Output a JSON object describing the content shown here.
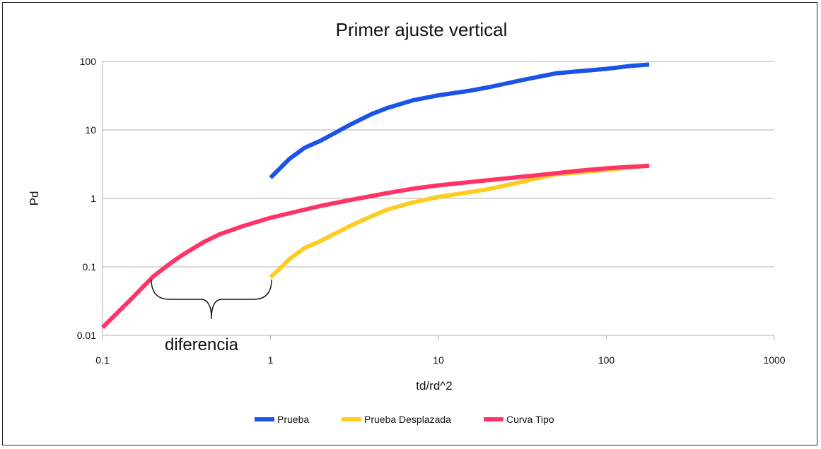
{
  "chart_data": {
    "type": "line",
    "title": "Primer ajuste vertical",
    "xlabel": "td/rd^2",
    "ylabel": "Pd",
    "xscale": "log",
    "yscale": "log",
    "xlim": [
      0.1,
      1000
    ],
    "ylim": [
      0.01,
      100
    ],
    "xticks": [
      "0.1",
      "1",
      "10",
      "100",
      "1000"
    ],
    "yticks": [
      "0.01",
      "0.1",
      "1",
      "10",
      "100"
    ],
    "grid": "horizontal",
    "legend_position": "bottom",
    "annotation": "diferencia",
    "series": [
      {
        "name": "Prueba",
        "color": "#1a53e8",
        "points": [
          [
            1,
            2
          ],
          [
            1.3,
            3.8
          ],
          [
            1.6,
            5.5
          ],
          [
            2,
            7
          ],
          [
            3,
            12
          ],
          [
            4,
            17
          ],
          [
            5,
            21
          ],
          [
            7,
            27
          ],
          [
            10,
            32
          ],
          [
            15,
            37
          ],
          [
            20,
            42
          ],
          [
            30,
            52
          ],
          [
            40,
            60
          ],
          [
            50,
            67
          ],
          [
            70,
            72
          ],
          [
            100,
            78
          ],
          [
            140,
            86
          ],
          [
            180,
            90
          ]
        ]
      },
      {
        "name": "Prueba Desplazada",
        "color": "#ffcc22",
        "points": [
          [
            1,
            0.07
          ],
          [
            1.3,
            0.13
          ],
          [
            1.6,
            0.19
          ],
          [
            2,
            0.24
          ],
          [
            3,
            0.4
          ],
          [
            4,
            0.55
          ],
          [
            5,
            0.69
          ],
          [
            7,
            0.87
          ],
          [
            10,
            1.05
          ],
          [
            15,
            1.22
          ],
          [
            20,
            1.37
          ],
          [
            30,
            1.7
          ],
          [
            40,
            2
          ],
          [
            50,
            2.25
          ],
          [
            70,
            2.4
          ],
          [
            100,
            2.6
          ],
          [
            140,
            2.85
          ],
          [
            180,
            3
          ]
        ]
      },
      {
        "name": "Curva Tipo",
        "color": "#ff3366",
        "points": [
          [
            0.1,
            0.013
          ],
          [
            0.15,
            0.035
          ],
          [
            0.2,
            0.072
          ],
          [
            0.25,
            0.11
          ],
          [
            0.3,
            0.15
          ],
          [
            0.4,
            0.23
          ],
          [
            0.5,
            0.3
          ],
          [
            0.7,
            0.4
          ],
          [
            1,
            0.52
          ],
          [
            1.5,
            0.66
          ],
          [
            2,
            0.78
          ],
          [
            3,
            0.95
          ],
          [
            5,
            1.2
          ],
          [
            7,
            1.38
          ],
          [
            10,
            1.55
          ],
          [
            20,
            1.85
          ],
          [
            40,
            2.2
          ],
          [
            70,
            2.55
          ],
          [
            100,
            2.75
          ],
          [
            180,
            3
          ]
        ]
      }
    ]
  }
}
